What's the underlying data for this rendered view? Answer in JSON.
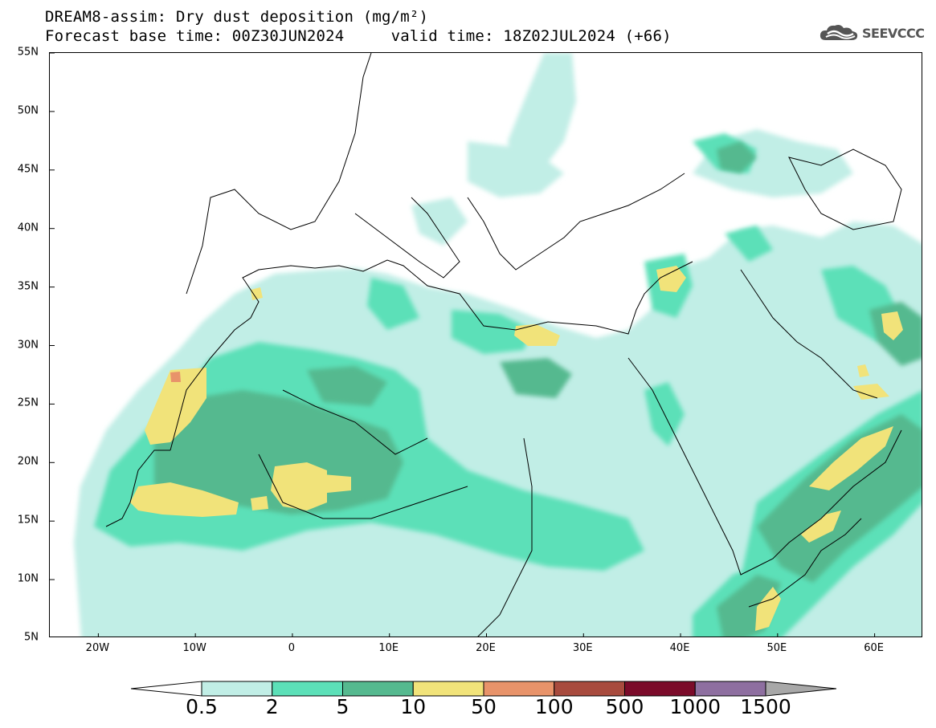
{
  "title": {
    "line1": "DREAM8-assim: Dry dust deposition (mg/m²)",
    "line2": "Forecast base time: 00Z30JUN2024     valid time: 18Z02JUL2024 (+66)"
  },
  "logo": {
    "text": "SEEVCCC",
    "icon": "cloud-icon"
  },
  "map": {
    "lon_range": [
      -25,
      65
    ],
    "lat_range": [
      5,
      55
    ],
    "lat_labels": [
      "55N",
      "50N",
      "45N",
      "40N",
      "35N",
      "30N",
      "25N",
      "20N",
      "15N",
      "10N",
      "5N"
    ],
    "lon_labels": [
      "20W",
      "10W",
      "0",
      "10E",
      "20E",
      "30E",
      "40E",
      "50E",
      "60E"
    ]
  },
  "colorbar": {
    "labels": [
      "0.5",
      "2",
      "5",
      "10",
      "50",
      "100",
      "500",
      "1000",
      "1500"
    ],
    "colors": [
      "#c1eee6",
      "#5ce0b8",
      "#55b98f",
      "#f1e37a",
      "#e8936a",
      "#a84b3e",
      "#7b0b2a",
      "#8e6fa0"
    ],
    "under_color": "#ffffff",
    "over_color": "#a8a8a8"
  }
}
